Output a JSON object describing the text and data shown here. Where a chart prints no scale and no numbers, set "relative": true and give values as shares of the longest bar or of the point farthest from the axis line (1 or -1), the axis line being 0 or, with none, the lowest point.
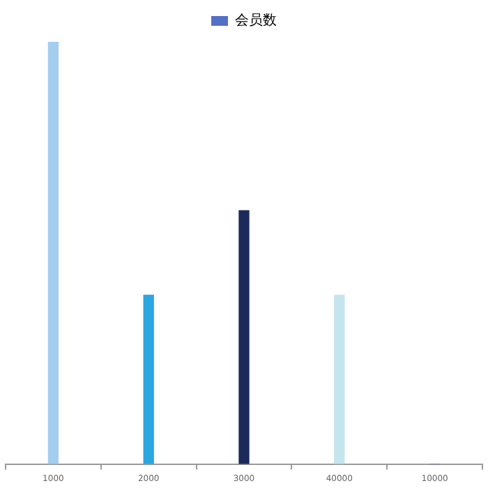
{
  "chart_data": {
    "type": "bar",
    "relative": true,
    "categories": [
      "1000",
      "2000",
      "3000",
      "40000",
      "10000"
    ],
    "series": [
      {
        "name": "会员数",
        "color": "#5470c6",
        "colors": [
          "#a4cdf0",
          "#2aa6e0",
          "#1b2a5a",
          "#c5e5ee",
          "#5470c6"
        ],
        "values": [
          1,
          0.4,
          0.6,
          0.4,
          0
        ]
      }
    ],
    "legend": "top",
    "grid": false
  }
}
